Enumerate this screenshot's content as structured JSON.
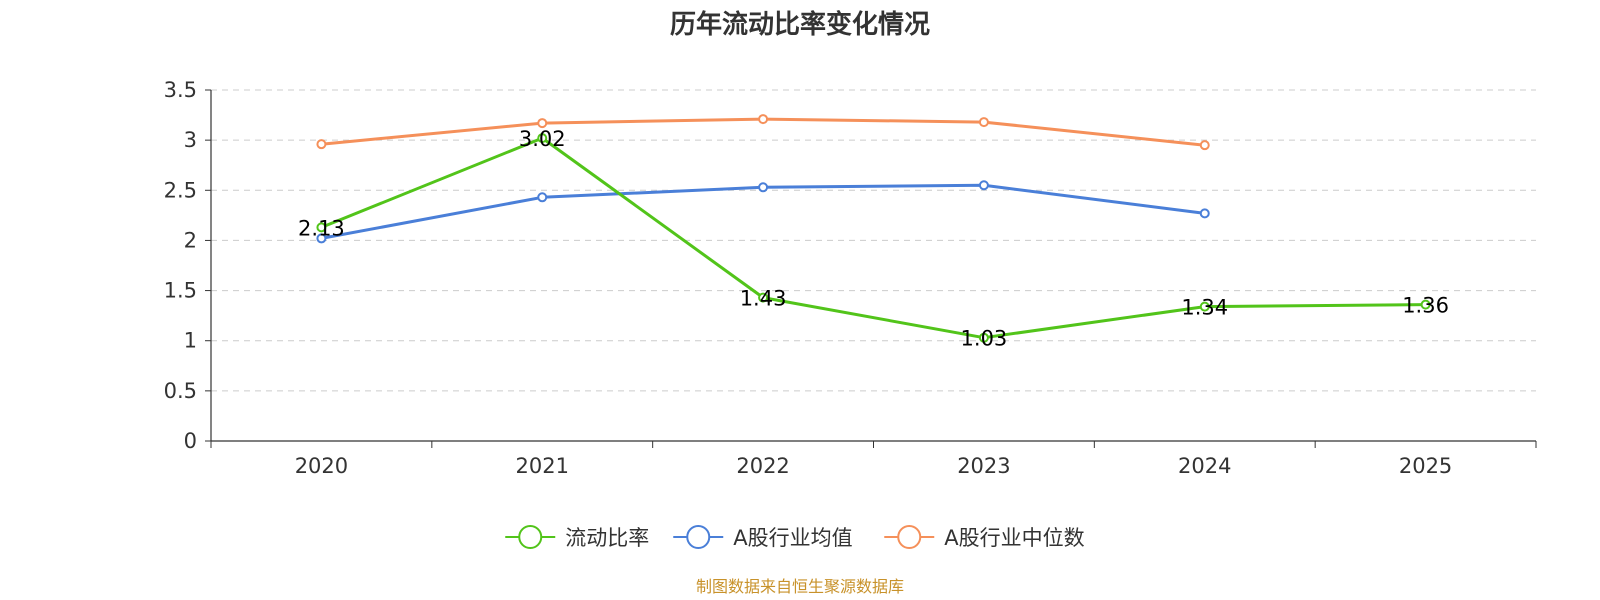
{
  "chart_data": {
    "type": "line",
    "title": "历年流动比率变化情况",
    "categories": [
      "2020",
      "2021",
      "2022",
      "2023",
      "2024",
      "2025"
    ],
    "ylim": [
      0,
      3.5
    ],
    "yticks": [
      "0",
      "0.5",
      "1",
      "1.5",
      "2",
      "2.5",
      "3",
      "3.5"
    ],
    "grid": true,
    "legend_position": "bottom-center",
    "series": [
      {
        "name": "流动比率",
        "color": "#52c41a",
        "values": [
          2.13,
          3.02,
          1.43,
          1.03,
          1.34,
          1.36
        ],
        "labels": [
          "2.13",
          "3.02",
          "1.43",
          "1.03",
          "1.34",
          "1.36"
        ],
        "show_labels": true
      },
      {
        "name": "A股行业均值",
        "color": "#4a7fd8",
        "values": [
          2.02,
          2.43,
          2.53,
          2.55,
          2.27,
          null
        ],
        "show_labels": false
      },
      {
        "name": "A股行业中位数",
        "color": "#f5905a",
        "values": [
          2.96,
          3.17,
          3.21,
          3.18,
          2.95,
          null
        ],
        "show_labels": false
      }
    ],
    "source": "制图数据来自恒生聚源数据库"
  }
}
